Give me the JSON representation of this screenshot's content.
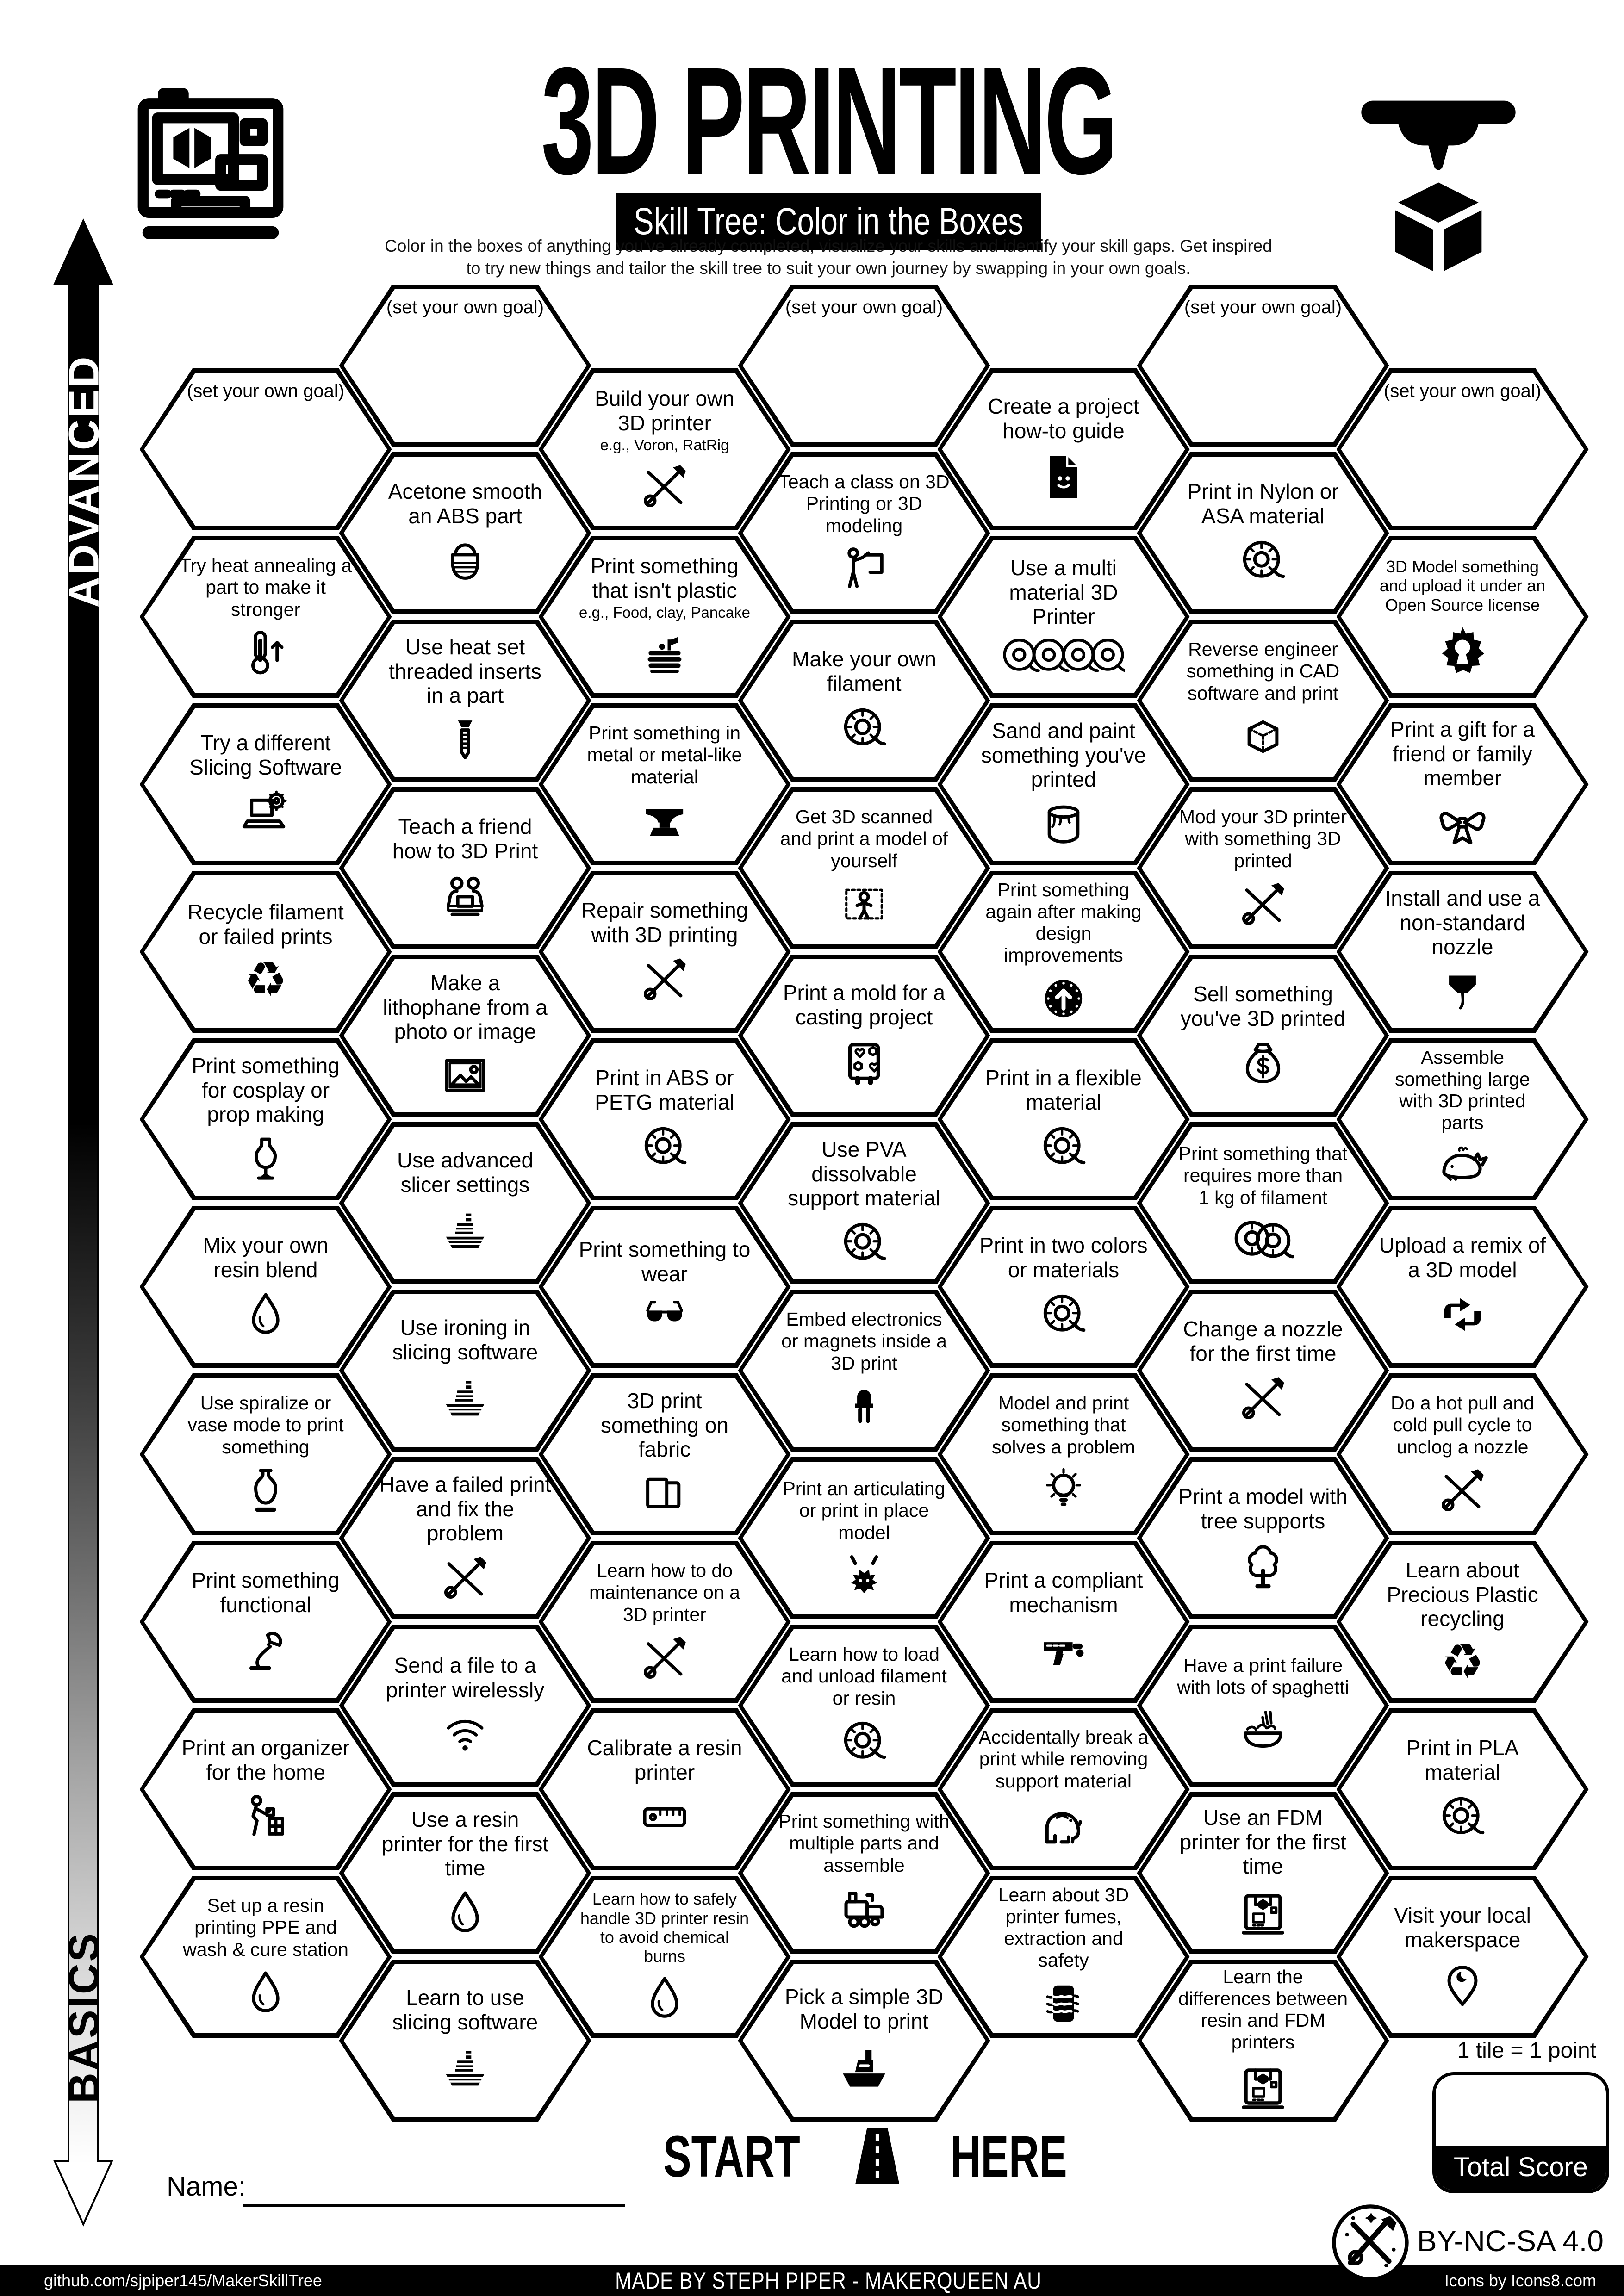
{
  "header": {
    "title": "3D PRINTING",
    "subtitle": "Skill Tree: Color in the Boxes",
    "desc1": "Color in the boxes of anything you've already completed, visualize your skills and identify your skill gaps.  Get inspired",
    "desc2": "to try new things and tailor the skill tree to suit your own journey by swapping in your own goals."
  },
  "axis": {
    "advanced": "ADVANCED",
    "basics": "BASICS"
  },
  "start": {
    "start": "START",
    "here": "HERE"
  },
  "name_label": "Name:",
  "score": {
    "note": "1 tile = 1 point",
    "label": "Total Score"
  },
  "license_text": "CC BY-NC-SA 4.0",
  "footer": {
    "left": "github.com/sjpiper145/MakerSkillTree",
    "center": "MADE BY STEPH PIPER  -  MAKERQUEEN AU",
    "right": "Icons by Icons8.com"
  },
  "tiles": [
    {
      "col": 0,
      "row": 0,
      "type": "goal",
      "label": "(set your own goal)"
    },
    {
      "col": 0,
      "row": 1,
      "label": "Try heat annealing a part to make it stronger",
      "icon": "thermometer"
    },
    {
      "col": 0,
      "row": 2,
      "label": "Try a different Slicing Software",
      "icon": "laptop-gear"
    },
    {
      "col": 0,
      "row": 3,
      "label": "Recycle filament or failed prints",
      "icon": "recycle"
    },
    {
      "col": 0,
      "row": 4,
      "label": "Print something for cosplay or prop making",
      "icon": "mannequin"
    },
    {
      "col": 0,
      "row": 5,
      "label": "Mix your own resin blend",
      "icon": "resin-drop"
    },
    {
      "col": 0,
      "row": 6,
      "label": "Use spiralize or vase mode to print something",
      "icon": "vase"
    },
    {
      "col": 0,
      "row": 7,
      "label": "Print something functional",
      "icon": "desk-lamp"
    },
    {
      "col": 0,
      "row": 8,
      "label": "Print an organizer for the home",
      "icon": "organizer"
    },
    {
      "col": 0,
      "row": 9,
      "label": "Set up a resin printing PPE and wash & cure station",
      "icon": "resin-drop"
    },
    {
      "col": 1,
      "row": 0,
      "type": "goal",
      "label": "(set your own goal)"
    },
    {
      "col": 1,
      "row": 1,
      "label": "Acetone smooth an ABS part",
      "icon": "acetone-jar"
    },
    {
      "col": 1,
      "row": 2,
      "label": "Use heat set threaded inserts in a part",
      "icon": "threaded-insert"
    },
    {
      "col": 1,
      "row": 3,
      "label": "Teach a friend how to 3D Print",
      "icon": "teach-friend"
    },
    {
      "col": 1,
      "row": 4,
      "label": "Make a lithophane from a photo or image",
      "icon": "photo"
    },
    {
      "col": 1,
      "row": 5,
      "label": "Use advanced slicer settings",
      "icon": "sliced-boat"
    },
    {
      "col": 1,
      "row": 6,
      "label": "Use ironing in slicing software",
      "icon": "sliced-boat"
    },
    {
      "col": 1,
      "row": 7,
      "label": "Have a failed print and fix the problem",
      "icon": "crossed-tools"
    },
    {
      "col": 1,
      "row": 8,
      "label": "Send a file to a printer wirelessly",
      "icon": "wifi"
    },
    {
      "col": 1,
      "row": 9,
      "label": "Use a resin printer for the first time",
      "icon": "resin-drop"
    },
    {
      "col": 1,
      "row": 10,
      "label": "Learn to use slicing software",
      "icon": "sliced-boat"
    },
    {
      "col": 2,
      "row": 0,
      "label": "Build your own 3D printer",
      "sublabel": "e.g., Voron, RatRig",
      "icon": "crossed-tools"
    },
    {
      "col": 2,
      "row": 1,
      "label": "Print something that isn't plastic",
      "sublabel": "e.g., Food, clay, Pancake",
      "icon": "pancakes"
    },
    {
      "col": 2,
      "row": 2,
      "label": "Print something in metal or metal-like material",
      "icon": "anvil"
    },
    {
      "col": 2,
      "row": 3,
      "label": "Repair something with 3D printing",
      "icon": "crossed-tools"
    },
    {
      "col": 2,
      "row": 4,
      "label": "Print in ABS or PETG material",
      "icon": "filament-spool"
    },
    {
      "col": 2,
      "row": 5,
      "label": "Print something to wear",
      "icon": "sunglasses"
    },
    {
      "col": 2,
      "row": 6,
      "label": "3D print something on fabric",
      "icon": "fabric"
    },
    {
      "col": 2,
      "row": 7,
      "label": "Learn how to do maintenance on a 3D printer",
      "icon": "crossed-tools"
    },
    {
      "col": 2,
      "row": 8,
      "label": "Calibrate a resin printer",
      "icon": "ruler"
    },
    {
      "col": 2,
      "row": 9,
      "label": "Learn how to safely handle 3D printer resin to avoid chemical burns",
      "icon": "resin-drop"
    },
    {
      "col": 3,
      "row": 0,
      "type": "goal",
      "label": "(set your own goal)"
    },
    {
      "col": 3,
      "row": 1,
      "label": "Teach a class on 3D Printing or 3D modeling",
      "icon": "teacher"
    },
    {
      "col": 3,
      "row": 2,
      "label": "Make your own filament",
      "icon": "filament-spool"
    },
    {
      "col": 3,
      "row": 3,
      "label": "Get 3D scanned and print a model of yourself",
      "icon": "body-scan"
    },
    {
      "col": 3,
      "row": 4,
      "label": "Print a mold for a casting project",
      "icon": "casting-mold"
    },
    {
      "col": 3,
      "row": 5,
      "label": "Use PVA dissolvable support material",
      "icon": "filament-spool"
    },
    {
      "col": 3,
      "row": 6,
      "label": "Embed electronics or magnets inside a 3D print",
      "icon": "led"
    },
    {
      "col": 3,
      "row": 7,
      "label": "Print an articulating or print in place model",
      "icon": "dragon"
    },
    {
      "col": 3,
      "row": 8,
      "label": "Learn how to load and unload filament or resin",
      "icon": "filament-spool"
    },
    {
      "col": 3,
      "row": 9,
      "label": "Print something with multiple parts and assemble",
      "icon": "toy-train"
    },
    {
      "col": 3,
      "row": 10,
      "label": "Pick a simple 3D Model to print",
      "icon": "benchy"
    },
    {
      "col": 4,
      "row": 0,
      "label": "Create a project how-to guide",
      "icon": "guide-doc"
    },
    {
      "col": 4,
      "row": 1,
      "label": "Use a multi material 3D Printer",
      "icon": "four-spools"
    },
    {
      "col": 4,
      "row": 2,
      "label": "Sand and paint something you've printed",
      "icon": "paint-can"
    },
    {
      "col": 4,
      "row": 3,
      "label": "Print something again after making design improvements",
      "icon": "iterate"
    },
    {
      "col": 4,
      "row": 4,
      "label": "Print in a flexible material",
      "icon": "filament-spool"
    },
    {
      "col": 4,
      "row": 5,
      "label": "Print in two colors or materials",
      "icon": "filament-spool"
    },
    {
      "col": 4,
      "row": 6,
      "label": "Model and print something that solves a problem",
      "icon": "lightbulb"
    },
    {
      "col": 4,
      "row": 7,
      "label": "Print a compliant mechanism",
      "icon": "toy-blaster"
    },
    {
      "col": 4,
      "row": 8,
      "label": "Accidentally break a print while removing support material",
      "icon": "elephant"
    },
    {
      "col": 4,
      "row": 9,
      "label": "Learn about 3D printer fumes, extraction and safety",
      "icon": "fume-extractor"
    },
    {
      "col": 5,
      "row": 0,
      "type": "goal",
      "label": "(set your own goal)"
    },
    {
      "col": 5,
      "row": 1,
      "label": "Print in Nylon or ASA material",
      "icon": "filament-spool"
    },
    {
      "col": 5,
      "row": 2,
      "label": "Reverse engineer something in CAD software and print",
      "icon": "cad-cube"
    },
    {
      "col": 5,
      "row": 3,
      "label": "Mod your 3D printer with something 3D printed",
      "icon": "crossed-tools"
    },
    {
      "col": 5,
      "row": 4,
      "label": "Sell something you've 3D printed",
      "icon": "money-bag"
    },
    {
      "col": 5,
      "row": 5,
      "label": "Print something that requires more than 1 kg of filament",
      "icon": "two-spools"
    },
    {
      "col": 5,
      "row": 6,
      "label": "Change a nozzle for the first time",
      "icon": "crossed-tools"
    },
    {
      "col": 5,
      "row": 7,
      "label": "Print a model with tree supports",
      "icon": "tree"
    },
    {
      "col": 5,
      "row": 8,
      "label": "Have a print failure  with lots of spaghetti",
      "icon": "spaghetti"
    },
    {
      "col": 5,
      "row": 9,
      "label": "Use an FDM printer for the first time",
      "icon": "fdm-printer"
    },
    {
      "col": 5,
      "row": 10,
      "label": "Learn the differences between resin and FDM printers",
      "icon": "fdm-printer"
    },
    {
      "col": 6,
      "row": 0,
      "type": "goal",
      "label": "(set your own goal)"
    },
    {
      "col": 6,
      "row": 1,
      "label": "3D Model something and upload it under an Open Source license",
      "icon": "open-source"
    },
    {
      "col": 6,
      "row": 2,
      "label": "Print a gift for a friend or family member",
      "icon": "gift-bow"
    },
    {
      "col": 6,
      "row": 3,
      "label": "Install and use a non-standard nozzle",
      "icon": "nozzle"
    },
    {
      "col": 6,
      "row": 4,
      "label": "Assemble something large with 3D printed parts",
      "icon": "whale"
    },
    {
      "col": 6,
      "row": 5,
      "label": "Upload a remix of a 3D model",
      "icon": "remix"
    },
    {
      "col": 6,
      "row": 6,
      "label": "Do a hot pull and cold pull cycle to unclog a nozzle",
      "icon": "crossed-tools"
    },
    {
      "col": 6,
      "row": 7,
      "label": "Learn about Precious Plastic recycling",
      "icon": "recycle"
    },
    {
      "col": 6,
      "row": 8,
      "label": "Print in PLA material",
      "icon": "filament-spool"
    },
    {
      "col": 6,
      "row": 9,
      "label": "Visit your local makerspace",
      "icon": "map-pin"
    }
  ]
}
